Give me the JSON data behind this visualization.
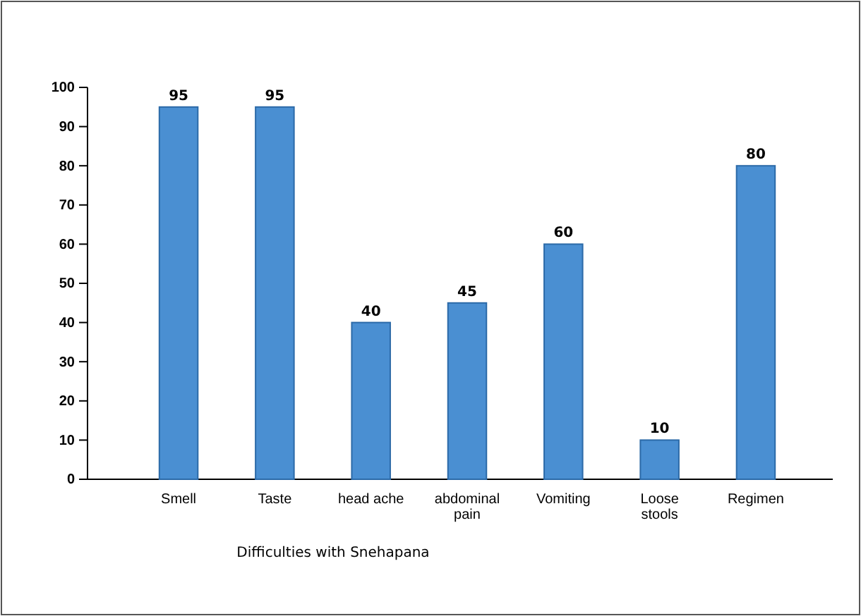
{
  "chart_data": {
    "type": "bar",
    "xlabel": "Difficulties with Snehapana",
    "categories": [
      "Smell",
      "Taste",
      "head ache",
      "abdominal pain",
      "Vomiting",
      "Loose stools",
      "Regimen"
    ],
    "values": [
      95,
      95,
      40,
      45,
      60,
      10,
      80
    ],
    "color": "#4a8fd2",
    "ylim": [
      0,
      100
    ],
    "yticks": [
      0,
      10,
      20,
      30,
      40,
      50,
      60,
      70,
      80,
      90,
      100
    ],
    "grid": false,
    "data_labels": true
  }
}
